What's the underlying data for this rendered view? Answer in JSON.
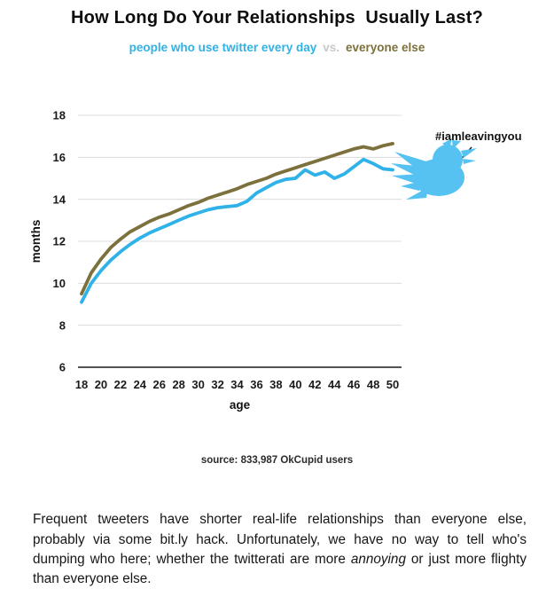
{
  "title": "How Long Do Your Relationships  Usually Last?",
  "subtitle": {
    "twitter_label": "people who use twitter every day",
    "vs_label": "vs.",
    "everyone_label": "everyone else",
    "twitter_color": "#2fb2e8",
    "vs_color": "#c9c9c9",
    "everyone_color": "#7c713c"
  },
  "chart_data": {
    "type": "line",
    "x": [
      18,
      19,
      20,
      21,
      22,
      23,
      24,
      25,
      26,
      27,
      28,
      29,
      30,
      31,
      32,
      33,
      34,
      35,
      36,
      37,
      38,
      39,
      40,
      41,
      42,
      43,
      44,
      45,
      46,
      47,
      48,
      49,
      50
    ],
    "series": [
      {
        "name": "everyone else",
        "color": "#7c713c",
        "values": [
          9.5,
          10.5,
          11.15,
          11.7,
          12.1,
          12.45,
          12.7,
          12.95,
          13.15,
          13.3,
          13.5,
          13.7,
          13.85,
          14.05,
          14.2,
          14.35,
          14.5,
          14.7,
          14.85,
          15.0,
          15.2,
          15.35,
          15.5,
          15.65,
          15.8,
          15.95,
          16.1,
          16.25,
          16.4,
          16.5,
          16.4,
          16.55,
          16.65
        ]
      },
      {
        "name": "people who use twitter every day",
        "color": "#2fb2e8",
        "values": [
          9.1,
          10.0,
          10.6,
          11.1,
          11.5,
          11.85,
          12.15,
          12.4,
          12.6,
          12.8,
          13.0,
          13.2,
          13.35,
          13.5,
          13.6,
          13.65,
          13.7,
          13.9,
          14.3,
          14.55,
          14.8,
          14.95,
          15.0,
          15.4,
          15.15,
          15.3,
          15.0,
          15.2,
          15.55,
          15.9,
          15.7,
          15.45,
          15.4
        ]
      }
    ],
    "xlabel": "age",
    "ylabel": "months",
    "xticks": [
      18,
      20,
      22,
      24,
      26,
      28,
      30,
      32,
      34,
      36,
      38,
      40,
      42,
      44,
      46,
      48,
      50
    ],
    "yticks": [
      6,
      8,
      10,
      12,
      14,
      16,
      18
    ],
    "xlim": [
      18,
      50
    ],
    "ylim": [
      6,
      18
    ],
    "grid": true,
    "legend_position": "subtitle",
    "annotation": {
      "label": "#iamleavingyou",
      "icon": "twitter-bird-icon",
      "icon_color": "#56c2f2"
    }
  },
  "source": "source: 833,987 OkCupid users",
  "paragraph": {
    "part1": "Frequent tweeters have shorter real-life relationships than everyone else, probably via some bit.ly hack. Unfortunately, we have no way to tell who's dumping who here; whether the twitterati are more ",
    "italic": "annoying",
    "part2": " or just more flighty than everyone else."
  }
}
